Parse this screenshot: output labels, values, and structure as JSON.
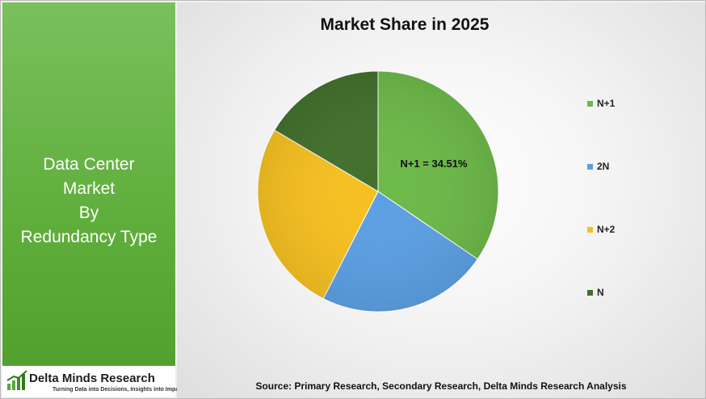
{
  "side_panel": {
    "title_lines": [
      "Data Center",
      "Market",
      "By",
      "Redundancy Type"
    ]
  },
  "logo": {
    "name": "Delta Minds Research",
    "tagline": "Turning Data into Decisions, Insights into Impact"
  },
  "source": "Source: Primary Research, Secondary Research, Delta Minds Research Analysis",
  "chart_data": {
    "type": "pie",
    "title": "Market Share in 2025",
    "categories": [
      "N+1",
      "2N",
      "N+2",
      "N"
    ],
    "values": [
      34.51,
      23.0,
      26.0,
      16.49
    ],
    "colors": [
      "#6cb948",
      "#5b9fe3",
      "#f6c020",
      "#426f2c"
    ],
    "data_labels": [
      "N+1 = 34.51%"
    ],
    "legend": "right"
  }
}
